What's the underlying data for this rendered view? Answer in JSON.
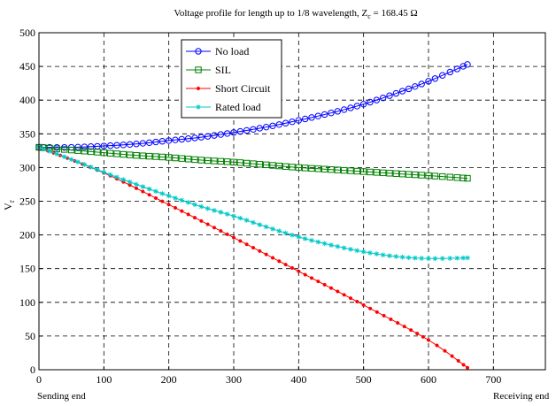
{
  "chart_data": {
    "type": "line",
    "title_main": "Voltage profile for length up to 1/8 wavelength, Z",
    "title_sub": "c",
    "title_tail": " = 168.45 Ω",
    "ylabel_main": "V",
    "ylabel_sub": "r",
    "xlabel_left": "Sending end",
    "xlabel_right": "Receiving end",
    "xlim": [
      0,
      780
    ],
    "ylim": [
      0,
      500
    ],
    "xticks": [
      0,
      100,
      200,
      300,
      400,
      500,
      600,
      700
    ],
    "yticks": [
      0,
      50,
      100,
      150,
      200,
      250,
      300,
      350,
      400,
      450,
      500
    ],
    "grid": true,
    "legend_position": "top-center",
    "series": [
      {
        "name": "No load",
        "color": "#0000ff",
        "marker": "circle",
        "x": [
          0,
          50,
          100,
          150,
          200,
          250,
          300,
          350,
          400,
          450,
          500,
          550,
          600,
          660
        ],
        "values": [
          330,
          330,
          332,
          335,
          340,
          345,
          352,
          360,
          370,
          381,
          394,
          410,
          428,
          453
        ]
      },
      {
        "name": "SIL",
        "color": "#008000",
        "marker": "square",
        "x": [
          0,
          50,
          100,
          150,
          200,
          250,
          300,
          350,
          400,
          450,
          500,
          550,
          600,
          660
        ],
        "values": [
          330,
          326,
          322,
          318,
          315,
          311,
          308,
          304,
          300,
          297,
          294,
          291,
          288,
          284
        ]
      },
      {
        "name": "Short Circuit",
        "color": "#ff0000",
        "marker": "dot",
        "x": [
          0,
          100,
          200,
          300,
          400,
          500,
          600,
          660
        ],
        "values": [
          330,
          292,
          245,
          196,
          146,
          96,
          44,
          3
        ]
      },
      {
        "name": "Rated load",
        "color": "#00c8c8",
        "marker": "star",
        "x": [
          0,
          50,
          100,
          150,
          200,
          250,
          300,
          350,
          400,
          450,
          500,
          550,
          600,
          660
        ],
        "values": [
          330,
          312,
          293,
          275,
          258,
          242,
          228,
          212,
          197,
          185,
          175,
          168,
          165,
          166
        ]
      }
    ]
  }
}
